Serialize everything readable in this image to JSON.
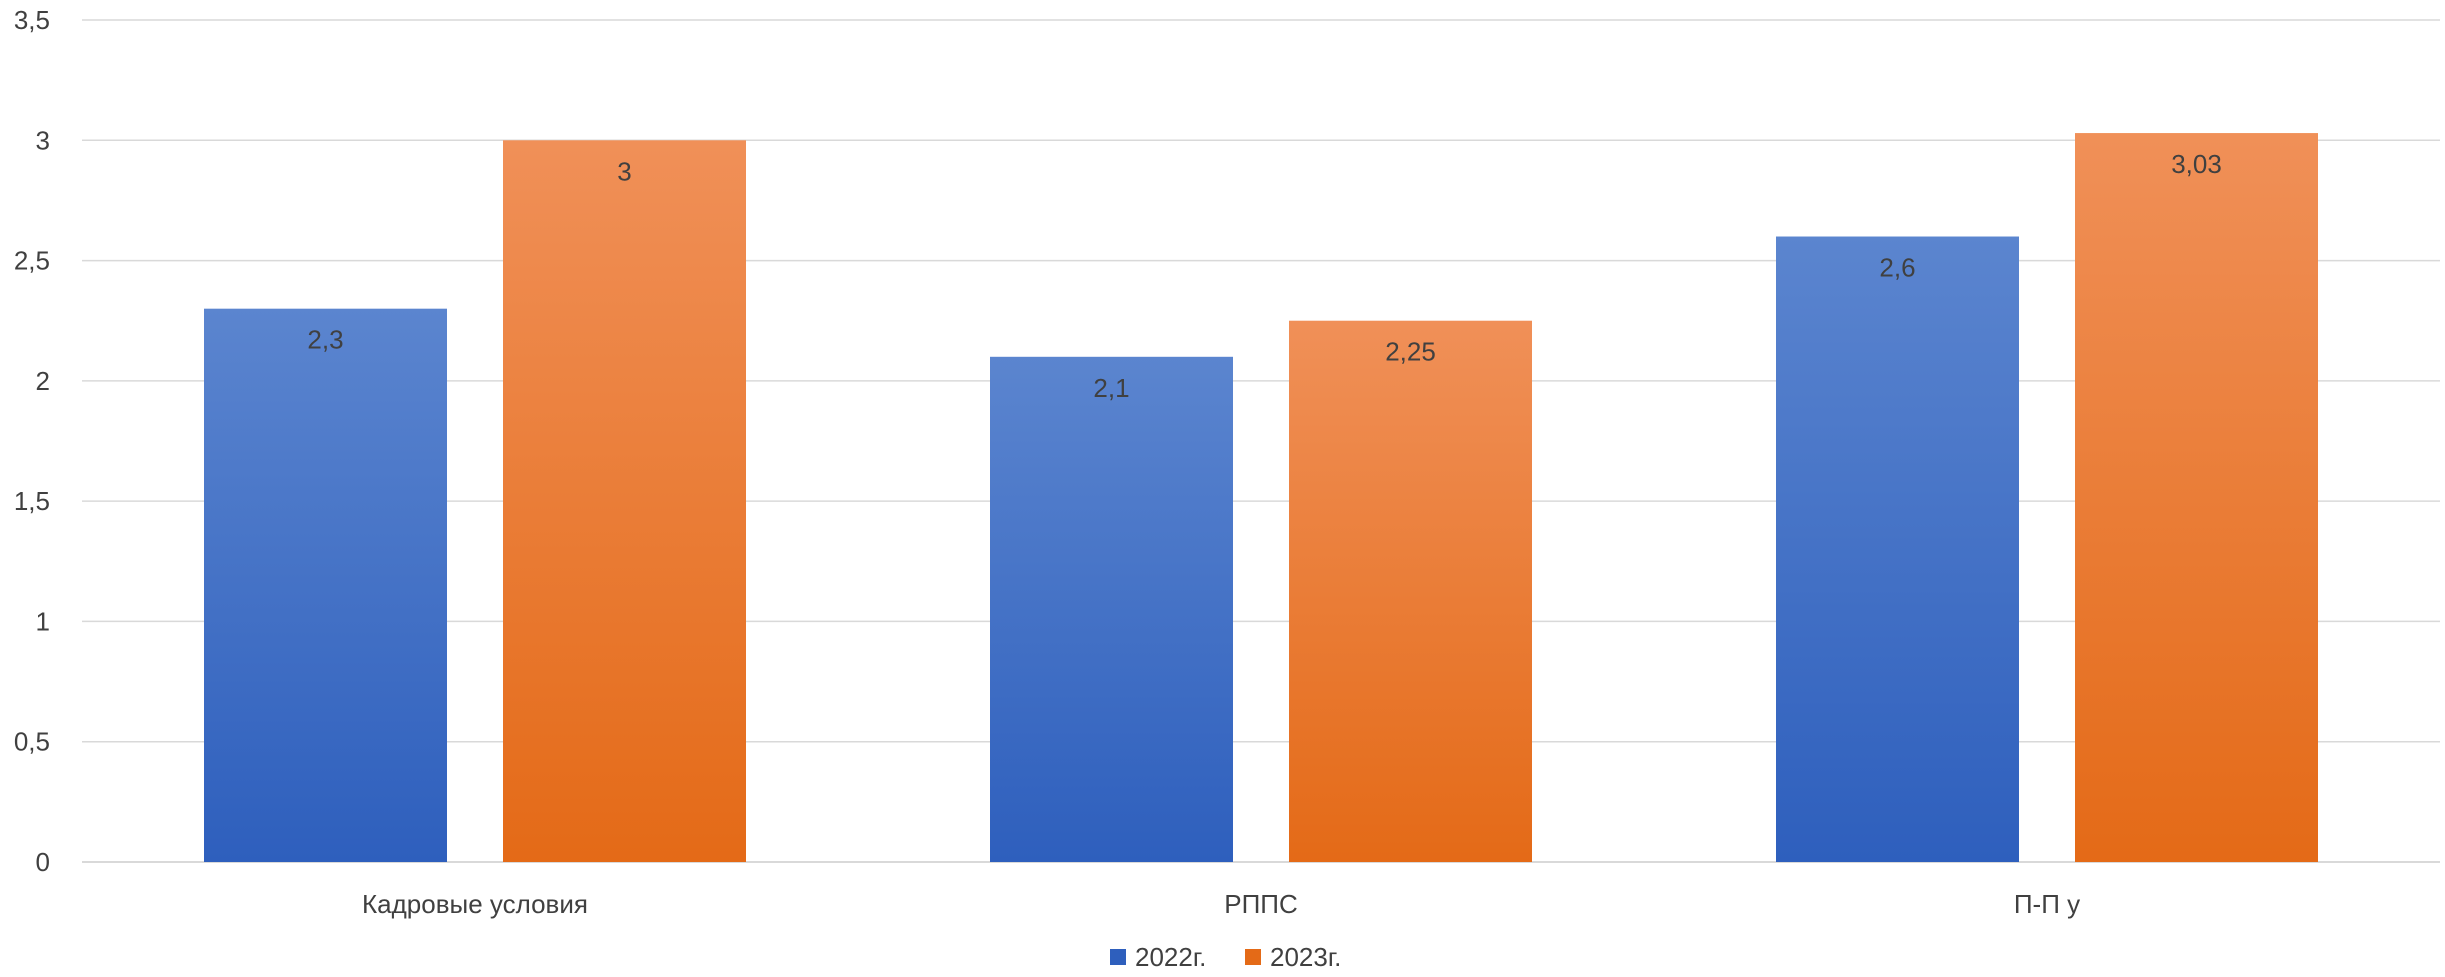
{
  "chart_data": {
    "type": "bar",
    "categories": [
      "Кадровые условия",
      "РППС",
      "П-П у"
    ],
    "series": [
      {
        "name": "2022г.",
        "values": [
          2.3,
          2.1,
          2.6
        ],
        "labels": [
          "2,3",
          "2,1",
          "2,6"
        ],
        "color_top": "#5b85cf",
        "color_bottom": "#2e5fbd"
      },
      {
        "name": "2023г.",
        "values": [
          3,
          2.25,
          3.03
        ],
        "labels": [
          "3",
          "2,25",
          "3,03"
        ],
        "color_top": "#f09058",
        "color_bottom": "#e46a17"
      }
    ],
    "ylim": [
      0,
      3.5
    ],
    "yticks": [
      {
        "value": 0,
        "label": "0"
      },
      {
        "value": 0.5,
        "label": "0,5"
      },
      {
        "value": 1,
        "label": "1"
      },
      {
        "value": 1.5,
        "label": "1,5"
      },
      {
        "value": 2,
        "label": "2"
      },
      {
        "value": 2.5,
        "label": "2,5"
      },
      {
        "value": 3,
        "label": "3"
      },
      {
        "value": 3.5,
        "label": "3,5"
      }
    ],
    "grid": true,
    "gridline_color": "#d9d9d9",
    "legend_position": "bottom",
    "title": "",
    "xlabel": "",
    "ylabel": ""
  }
}
